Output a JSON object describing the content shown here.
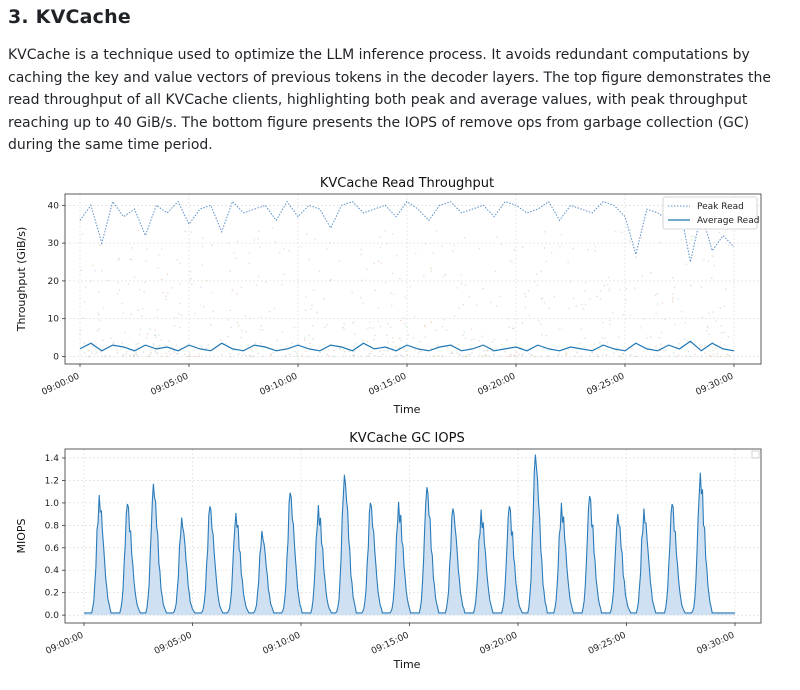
{
  "section": {
    "heading": "3. KVCache",
    "paragraph": "KVCache is a technique used to optimize the LLM inference process. It avoids redundant computations by caching the key and value vectors of previous tokens in the decoder layers. The top figure demonstrates the read throughput of all KVCache clients, highlighting both peak and average values, with peak throughput reaching up to 40 GiB/s. The bottom figure presents the IOPS of remove ops from garbage collection (GC) during the same time period."
  },
  "colors": {
    "peak": "#5b8fc7",
    "average": "#1f77b4",
    "gc_line": "#2b7bb9",
    "gc_fill": "#c6dbef"
  },
  "chart_data": [
    {
      "type": "line",
      "title": "KVCache Read Throughput",
      "xlabel": "Time",
      "ylabel": "Throughput (GiB/s)",
      "x_ticks": [
        "09:00:00",
        "09:05:00",
        "09:10:00",
        "09:15:00",
        "09:20:00",
        "09:25:00",
        "09:30:00"
      ],
      "y_ticks": [
        0,
        10,
        20,
        30,
        40
      ],
      "ylim": [
        -2,
        43
      ],
      "grid": true,
      "legend_position": "top-right",
      "x_unit": "minutes after 09:00:00",
      "series": [
        {
          "name": "Peak Read",
          "style": "dotted",
          "x": [
            0,
            0.5,
            1,
            1.5,
            2,
            2.5,
            3,
            3.5,
            4,
            4.5,
            5,
            5.5,
            6,
            6.5,
            7,
            7.5,
            8,
            8.5,
            9,
            9.5,
            10,
            10.5,
            11,
            11.5,
            12,
            12.5,
            13,
            13.5,
            14,
            14.5,
            15,
            15.5,
            16,
            16.5,
            17,
            17.5,
            18,
            18.5,
            19,
            19.5,
            20,
            20.5,
            21,
            21.5,
            22,
            22.5,
            23,
            23.5,
            24,
            24.5,
            25,
            25.5,
            26,
            26.5,
            27,
            27.5,
            28,
            28.5,
            29,
            29.5,
            30
          ],
          "values": [
            36,
            40,
            30,
            41,
            37,
            39,
            32,
            40,
            38,
            41,
            35,
            39,
            40,
            33,
            41,
            38,
            39,
            40,
            36,
            41,
            37,
            40,
            39,
            34,
            40,
            41,
            38,
            39,
            40,
            37,
            41,
            39,
            36,
            40,
            41,
            38,
            39,
            40,
            37,
            41,
            40,
            38,
            39,
            41,
            36,
            40,
            39,
            38,
            41,
            40,
            37,
            27,
            39,
            38,
            36,
            40,
            25,
            38,
            28,
            32,
            29
          ]
        },
        {
          "name": "Average Read",
          "style": "solid",
          "x": [
            0,
            0.5,
            1,
            1.5,
            2,
            2.5,
            3,
            3.5,
            4,
            4.5,
            5,
            5.5,
            6,
            6.5,
            7,
            7.5,
            8,
            8.5,
            9,
            9.5,
            10,
            10.5,
            11,
            11.5,
            12,
            12.5,
            13,
            13.5,
            14,
            14.5,
            15,
            15.5,
            16,
            16.5,
            17,
            17.5,
            18,
            18.5,
            19,
            19.5,
            20,
            20.5,
            21,
            21.5,
            22,
            22.5,
            23,
            23.5,
            24,
            24.5,
            25,
            25.5,
            26,
            26.5,
            27,
            27.5,
            28,
            28.5,
            29,
            29.5,
            30
          ],
          "values": [
            2,
            3.5,
            1.5,
            3,
            2.5,
            1.5,
            3,
            2,
            2.5,
            1.5,
            3,
            2,
            1.5,
            3.5,
            2,
            1.5,
            3,
            2.5,
            1.5,
            2,
            3,
            2,
            1.5,
            3,
            2.5,
            1.5,
            3.5,
            2,
            2.5,
            1.5,
            3,
            2,
            1.5,
            2.5,
            3,
            1.5,
            2,
            3,
            1.5,
            2,
            2.5,
            1.5,
            3,
            2,
            1.5,
            2.5,
            2,
            1.5,
            3,
            2,
            1.5,
            3.5,
            2,
            1.5,
            3,
            2,
            4,
            1.5,
            3.5,
            2,
            1.5
          ]
        }
      ]
    },
    {
      "type": "area",
      "title": "KVCache GC IOPS",
      "xlabel": "Time",
      "ylabel": "MIOPS",
      "x_ticks": [
        "09:00:00",
        "09:05:00",
        "09:10:00",
        "09:15:00",
        "09:20:00",
        "09:25:00",
        "09:30:00"
      ],
      "y_ticks": [
        0.0,
        0.2,
        0.4,
        0.6,
        0.8,
        1.0,
        1.2,
        1.4
      ],
      "ylim": [
        -0.07,
        1.48
      ],
      "grid": true,
      "x_unit": "minutes after 09:00:00",
      "series": [
        {
          "name": "",
          "peaks_x": [
            0.7,
            2.0,
            3.2,
            4.5,
            5.8,
            7.0,
            8.2,
            9.5,
            10.8,
            12.0,
            13.2,
            14.5,
            15.8,
            17.0,
            18.3,
            19.6,
            20.8,
            22.0,
            23.3,
            24.6,
            25.8,
            27.1,
            28.4
          ],
          "peaks_y": [
            1.07,
            0.99,
            1.17,
            0.87,
            0.97,
            0.91,
            0.75,
            1.09,
            0.98,
            1.25,
            1.0,
            1.01,
            1.14,
            0.95,
            0.94,
            0.97,
            1.43,
            1.0,
            1.06,
            0.9,
            0.95,
            0.99,
            1.27
          ],
          "baseline": 0.02
        }
      ]
    }
  ]
}
